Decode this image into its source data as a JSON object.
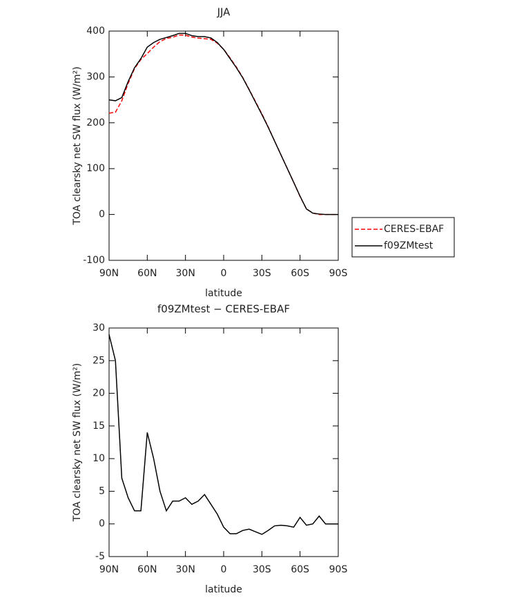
{
  "chart_data": [
    {
      "type": "line",
      "title": "JJA",
      "xlabel": "latitude",
      "ylabel": "TOA clearsky net SW flux (W/m²)",
      "x": [
        90,
        85,
        80,
        75,
        70,
        65,
        60,
        55,
        50,
        45,
        40,
        35,
        30,
        25,
        20,
        15,
        10,
        5,
        0,
        -5,
        -10,
        -15,
        -20,
        -25,
        -30,
        -35,
        -40,
        -45,
        -50,
        -55,
        -60,
        -65,
        -70,
        -75,
        -80,
        -85,
        -90
      ],
      "series": [
        {
          "name": "CERES-EBAF",
          "color": "#ff0000",
          "linestyle": "dashed",
          "values": [
            221,
            223,
            248,
            286,
            318,
            338,
            351,
            365,
            377,
            384,
            386.5,
            391.5,
            391,
            387,
            384.5,
            383.5,
            382,
            373.5,
            360.5,
            341.5,
            321.5,
            299,
            272.8,
            246.2,
            219.6,
            191,
            160.3,
            130.2,
            100.3,
            70.5,
            39,
            12.2,
            3,
            -0.2,
            0,
            0,
            0
          ]
        },
        {
          "name": "f09ZMtest",
          "color": "#000000",
          "linestyle": "solid",
          "values": [
            250,
            248,
            255,
            290,
            320,
            340,
            365,
            375,
            382,
            386,
            390,
            395,
            395,
            390,
            388,
            388,
            385,
            375,
            360,
            340,
            320,
            298,
            272,
            245,
            218,
            190,
            160,
            130,
            100,
            70,
            40,
            12,
            3,
            1,
            0,
            0,
            0
          ]
        }
      ],
      "xlim": [
        90,
        -90
      ],
      "xticks": [
        {
          "value": 90,
          "label": "90N"
        },
        {
          "value": 60,
          "label": "60N"
        },
        {
          "value": 30,
          "label": "30N"
        },
        0,
        {
          "value": -30,
          "label": "30S"
        },
        {
          "value": -60,
          "label": "60S"
        },
        {
          "value": -90,
          "label": "90S"
        }
      ],
      "ylim": [
        -100,
        400
      ],
      "yticks": [
        -100,
        0,
        100,
        200,
        300,
        400
      ],
      "legend": "right"
    },
    {
      "type": "line",
      "title": "f09ZMtest − CERES-EBAF",
      "xlabel": "latitude",
      "ylabel": "TOA clearsky net SW flux (W/m²)",
      "x": [
        90,
        85,
        80,
        75,
        70,
        65,
        60,
        55,
        50,
        45,
        40,
        35,
        30,
        25,
        20,
        15,
        10,
        5,
        0,
        -5,
        -10,
        -15,
        -20,
        -25,
        -30,
        -35,
        -40,
        -45,
        -50,
        -55,
        -60,
        -65,
        -70,
        -75,
        -80,
        -85,
        -90
      ],
      "values": [
        29,
        25,
        7,
        4,
        2,
        2,
        14,
        10,
        5,
        2,
        3.5,
        3.5,
        4,
        3,
        3.5,
        4.5,
        3,
        1.5,
        -0.5,
        -1.5,
        -1.5,
        -1,
        -0.8,
        -1.2,
        -1.6,
        -1,
        -0.3,
        -0.2,
        -0.3,
        -0.5,
        1,
        -0.2,
        0,
        1.2,
        0,
        0,
        0
      ],
      "color": "#000000",
      "xlim": [
        90,
        -90
      ],
      "xticks": [
        {
          "value": 90,
          "label": "90N"
        },
        {
          "value": 60,
          "label": "60N"
        },
        {
          "value": 30,
          "label": "30N"
        },
        0,
        {
          "value": -30,
          "label": "30S"
        },
        {
          "value": -60,
          "label": "60S"
        },
        {
          "value": -90,
          "label": "90S"
        }
      ],
      "ylim": [
        -5,
        30
      ],
      "yticks": [
        -5,
        0,
        5,
        10,
        15,
        20,
        25,
        30
      ]
    }
  ]
}
